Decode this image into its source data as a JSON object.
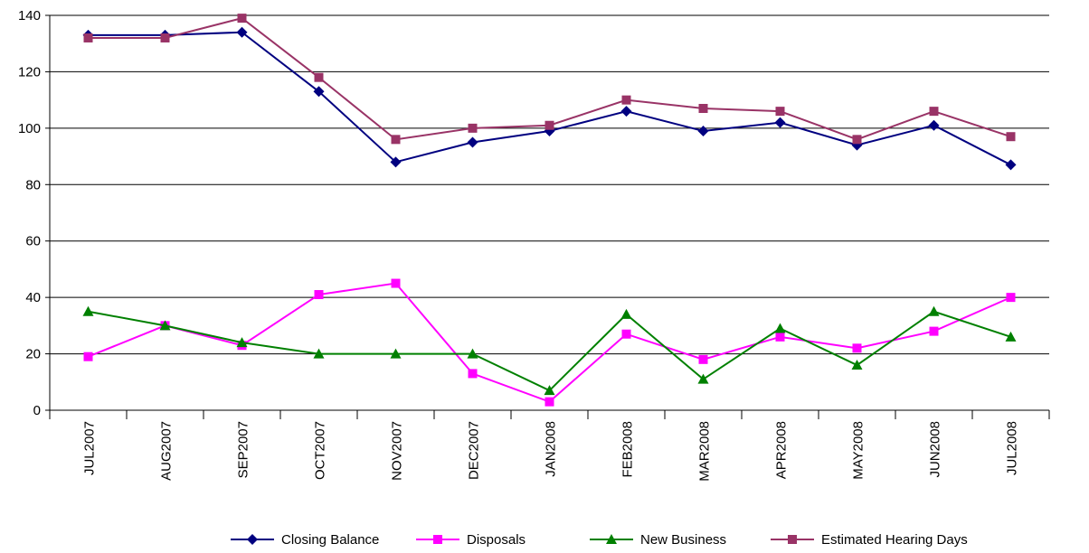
{
  "chart_data": {
    "type": "line",
    "title": "",
    "xlabel": "",
    "ylabel": "",
    "ylim": [
      0,
      140
    ],
    "yticks": [
      0,
      20,
      40,
      60,
      80,
      100,
      120,
      140
    ],
    "grid": true,
    "legend_position": "bottom",
    "categories": [
      "JUL2007",
      "AUG2007",
      "SEP2007",
      "OCT2007",
      "NOV2007",
      "DEC2007",
      "JAN2008",
      "FEB2008",
      "MAR2008",
      "APR2008",
      "MAY2008",
      "JUN2008",
      "JUL2008"
    ],
    "series": [
      {
        "name": "Closing Balance",
        "color": "#000080",
        "marker": "diamond",
        "values": [
          133,
          133,
          134,
          113,
          88,
          95,
          99,
          106,
          99,
          102,
          94,
          101,
          87
        ]
      },
      {
        "name": "Disposals",
        "color": "#FF00FF",
        "marker": "square",
        "values": [
          19,
          30,
          23,
          41,
          45,
          13,
          3,
          27,
          18,
          26,
          22,
          28,
          40
        ]
      },
      {
        "name": "New Business",
        "color": "#008000",
        "marker": "triangle",
        "values": [
          35,
          30,
          24,
          20,
          20,
          20,
          7,
          34,
          11,
          29,
          16,
          35,
          26
        ]
      },
      {
        "name": "Estimated Hearing Days",
        "color": "#993366",
        "marker": "square",
        "values": [
          132,
          132,
          139,
          118,
          96,
          100,
          101,
          110,
          107,
          106,
          96,
          106,
          97
        ]
      }
    ]
  }
}
